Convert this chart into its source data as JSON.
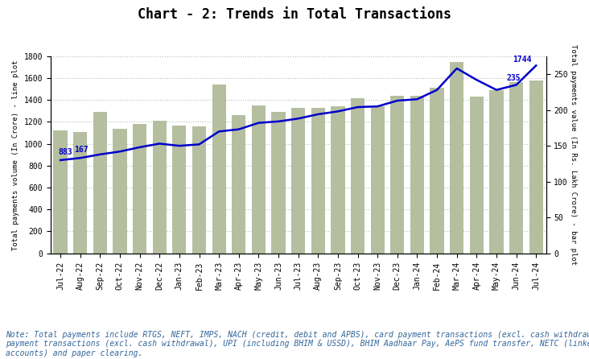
{
  "title": "Chart - 2: Trends in Total Transactions",
  "categories": [
    "Jul-22",
    "Aug-22",
    "Sep-22",
    "Oct-22",
    "Nov-22",
    "Dec-22",
    "Jan-23",
    "Feb-23",
    "Mar-23",
    "Apr-23",
    "May-23",
    "Jun-23",
    "Jul-23",
    "Aug-23",
    "Sep-23",
    "Oct-23",
    "Nov-23",
    "Dec-23",
    "Jan-24",
    "Feb-24",
    "Mar-24",
    "Apr-24",
    "May-24",
    "Jun-24",
    "Jul-24"
  ],
  "bar_values": [
    1120,
    1110,
    1290,
    1140,
    1180,
    1210,
    1170,
    1160,
    1540,
    1260,
    1350,
    1290,
    1330,
    1330,
    1340,
    1420,
    1340,
    1440,
    1440,
    1510,
    1750,
    1430,
    1490,
    1560,
    1580
  ],
  "line_values": [
    130,
    133,
    138,
    142,
    148,
    153,
    150,
    152,
    170,
    173,
    182,
    184,
    188,
    194,
    198,
    204,
    205,
    213,
    215,
    228,
    258,
    242,
    228,
    235,
    262
  ],
  "bar_color": "#b5bfa0",
  "line_color": "#0000cc",
  "ylabel_left": "Total payments volume (In Crore) - line plot",
  "ylabel_right": "Total payments value (In Rs. Lakh Crore) - bar plot",
  "ylim_bar": [
    0,
    1800
  ],
  "ylim_line": [
    0,
    275
  ],
  "yticks_bar": [
    0,
    200,
    400,
    600,
    800,
    1000,
    1200,
    1400,
    1600,
    1800
  ],
  "yticks_line": [
    0,
    50,
    100,
    150,
    200,
    250
  ],
  "annot_883_idx": 0,
  "annot_883_val": 130,
  "annot_883_text": "883",
  "annot_167_idx": 1,
  "annot_167_val": 133,
  "annot_167_text": "167",
  "annot_1744_idx": 24,
  "annot_1744_val": 262,
  "annot_1744_text": "1744",
  "annot_235_idx": 23,
  "annot_235_val": 235,
  "annot_235_text": "235",
  "note": "Note: Total payments include RTGS, NEFT, IMPS, NACH (credit, debit and APBS), card payment transactions (excl. cash withdrawal), PPI\npayment transactions (excl. cash withdrawal), UPI (including BHIM & USSD), BHIM Aadhaar Pay, AePS fund transfer, NETC (linked to bank\naccounts) and paper clearing.",
  "title_fontsize": 12,
  "axis_label_fontsize": 6.5,
  "tick_fontsize": 7,
  "note_fontsize": 7,
  "background_color": "#ffffff",
  "grid_color": "#bbbbbb",
  "note_color": "#336699"
}
